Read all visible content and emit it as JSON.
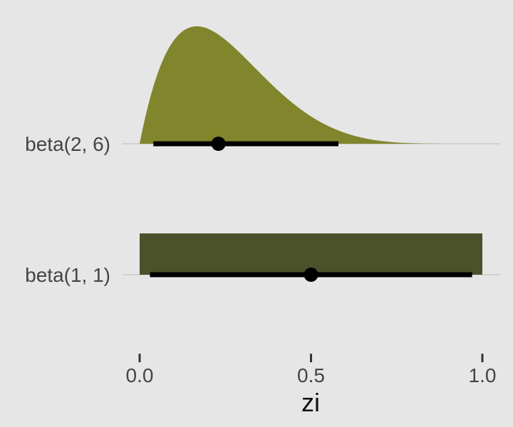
{
  "chart_data": {
    "type": "halfeye",
    "xlabel": "zi",
    "xlim": [
      0,
      1
    ],
    "x_ticks": [
      {
        "value": 0.0,
        "label": "0.0"
      },
      {
        "value": 0.5,
        "label": "0.5"
      },
      {
        "value": 1.0,
        "label": "1.0"
      }
    ],
    "grid": "horizontal baselines only",
    "series": [
      {
        "name": "beta(2, 6)",
        "distribution": "beta",
        "alpha": 2,
        "beta": 6,
        "color": "#81852c",
        "point": 0.23,
        "interval": [
          0.04,
          0.58
        ]
      },
      {
        "name": "beta(1, 1)",
        "distribution": "beta",
        "alpha": 1,
        "beta": 1,
        "color": "#4a512b",
        "point": 0.5,
        "interval": [
          0.03,
          0.97
        ]
      }
    ]
  }
}
